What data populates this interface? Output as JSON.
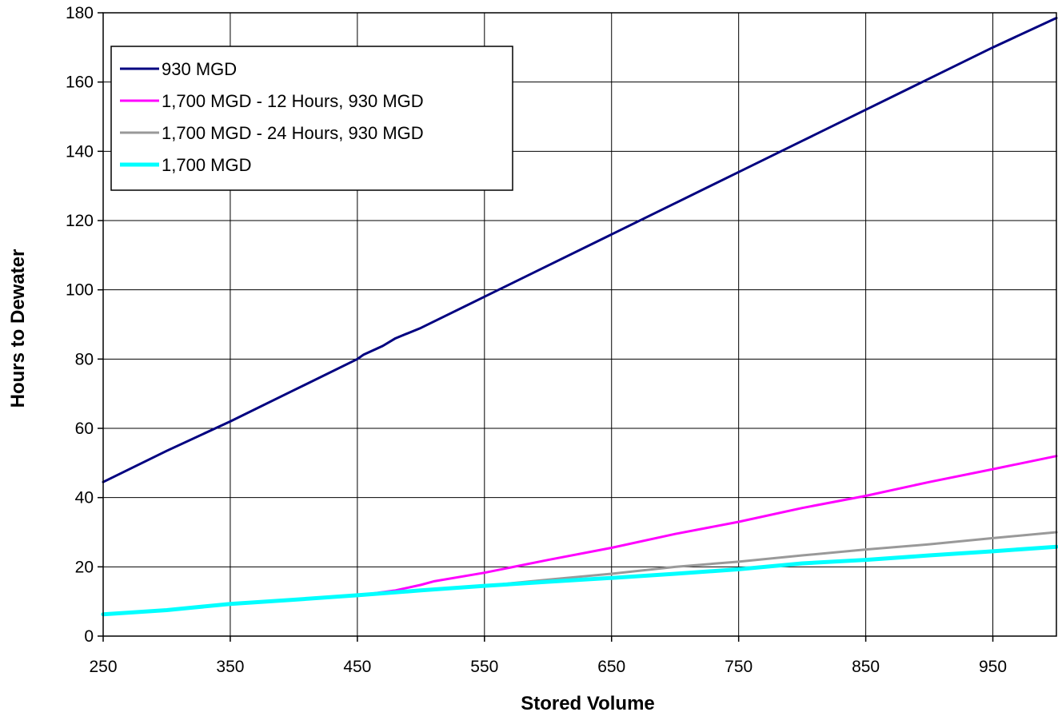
{
  "chart_data": {
    "type": "line",
    "title": "",
    "xlabel": "Stored Volume",
    "ylabel": "Hours to Dewater",
    "xlim": [
      250,
      1000
    ],
    "ylim": [
      0,
      180
    ],
    "x_ticks": [
      250,
      350,
      450,
      550,
      650,
      750,
      850,
      950
    ],
    "y_ticks": [
      0,
      20,
      40,
      60,
      80,
      100,
      120,
      140,
      160,
      180
    ],
    "grid": true,
    "legend_position": "top-left",
    "series": [
      {
        "name": "930 MGD",
        "color": "#000080",
        "points": [
          [
            250,
            44.5
          ],
          [
            300,
            53.5
          ],
          [
            350,
            62
          ],
          [
            400,
            71
          ],
          [
            450,
            80
          ],
          [
            455,
            81.3
          ],
          [
            470,
            83.8
          ],
          [
            480,
            86
          ],
          [
            500,
            89
          ],
          [
            550,
            98
          ],
          [
            600,
            107
          ],
          [
            650,
            116
          ],
          [
            700,
            125
          ],
          [
            750,
            134
          ],
          [
            800,
            143
          ],
          [
            850,
            152
          ],
          [
            900,
            161
          ],
          [
            950,
            170
          ],
          [
            1000,
            178.5
          ]
        ]
      },
      {
        "name": "1,700 MGD - 12 Hours, 930 MGD",
        "color": "#ff00ff",
        "points": [
          [
            250,
            6.3
          ],
          [
            300,
            7.5
          ],
          [
            350,
            9.3
          ],
          [
            400,
            10.5
          ],
          [
            450,
            11.8
          ],
          [
            460,
            12.2
          ],
          [
            480,
            13.2
          ],
          [
            500,
            14.8
          ],
          [
            510,
            15.8
          ],
          [
            550,
            18.3
          ],
          [
            600,
            22
          ],
          [
            650,
            25.5
          ],
          [
            700,
            29.5
          ],
          [
            750,
            33
          ],
          [
            800,
            37
          ],
          [
            850,
            40.5
          ],
          [
            900,
            44.5
          ],
          [
            950,
            48.2
          ],
          [
            1000,
            52
          ]
        ]
      },
      {
        "name": "1,700 MGD - 24 Hours, 930 MGD",
        "color": "#999999",
        "points": [
          [
            250,
            6.3
          ],
          [
            300,
            7.5
          ],
          [
            350,
            9.3
          ],
          [
            400,
            10.5
          ],
          [
            450,
            11.8
          ],
          [
            470,
            12.3
          ],
          [
            500,
            13.2
          ],
          [
            550,
            14.5
          ],
          [
            600,
            16.3
          ],
          [
            650,
            18
          ],
          [
            700,
            20
          ],
          [
            750,
            21.5
          ],
          [
            800,
            23.3
          ],
          [
            850,
            25
          ],
          [
            900,
            26.5
          ],
          [
            950,
            28.3
          ],
          [
            1000,
            30
          ]
        ]
      },
      {
        "name": "1,700 MGD",
        "color": "#00ffff",
        "points": [
          [
            250,
            6.3
          ],
          [
            300,
            7.5
          ],
          [
            350,
            9.3
          ],
          [
            400,
            10.5
          ],
          [
            450,
            11.8
          ],
          [
            500,
            13.2
          ],
          [
            550,
            14.5
          ],
          [
            600,
            15.7
          ],
          [
            650,
            16.8
          ],
          [
            700,
            18
          ],
          [
            750,
            19.3
          ],
          [
            800,
            21
          ],
          [
            850,
            22
          ],
          [
            900,
            23.3
          ],
          [
            950,
            24.5
          ],
          [
            1000,
            25.8
          ]
        ]
      }
    ]
  }
}
